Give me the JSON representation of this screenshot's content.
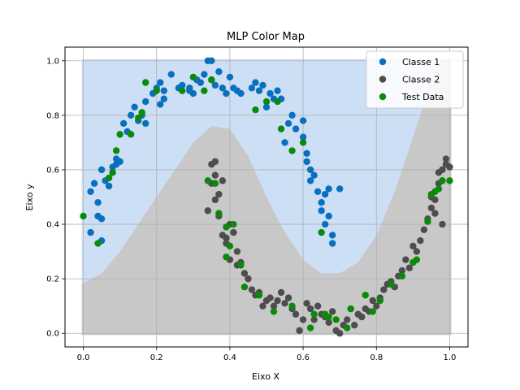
{
  "chart_data": {
    "type": "scatter",
    "title": "MLP Color Map",
    "xlabel": "Eixo X",
    "ylabel": "Eixo y",
    "xlim": [
      -0.05,
      1.05
    ],
    "ylim": [
      -0.05,
      1.05
    ],
    "xticks": [
      "0.0",
      "0.2",
      "0.4",
      "0.6",
      "0.8",
      "1.0"
    ],
    "yticks": [
      "0.0",
      "0.2",
      "0.4",
      "0.6",
      "0.8",
      "1.0"
    ],
    "grid": true,
    "legend_position": "top-right",
    "background": {
      "region_class1_color": "#cddff5",
      "region_class2_color": "#c8c8c8",
      "extent_x": [
        0.0,
        1.0
      ],
      "extent_y": [
        0.0,
        1.0
      ],
      "boundary": [
        [
          0.0,
          0.18
        ],
        [
          0.05,
          0.22
        ],
        [
          0.1,
          0.3
        ],
        [
          0.15,
          0.4
        ],
        [
          0.2,
          0.5
        ],
        [
          0.25,
          0.6
        ],
        [
          0.3,
          0.7
        ],
        [
          0.35,
          0.76
        ],
        [
          0.4,
          0.75
        ],
        [
          0.45,
          0.65
        ],
        [
          0.5,
          0.5
        ],
        [
          0.55,
          0.37
        ],
        [
          0.6,
          0.27
        ],
        [
          0.65,
          0.22
        ],
        [
          0.7,
          0.22
        ],
        [
          0.75,
          0.26
        ],
        [
          0.8,
          0.36
        ],
        [
          0.85,
          0.52
        ],
        [
          0.9,
          0.72
        ],
        [
          0.95,
          0.93
        ],
        [
          0.975,
          1.0
        ],
        [
          1.0,
          1.0
        ]
      ]
    },
    "series": [
      {
        "name": "Classe 1",
        "color": "#0a6fbf",
        "points": [
          [
            0.02,
            0.37
          ],
          [
            0.02,
            0.52
          ],
          [
            0.03,
            0.55
          ],
          [
            0.04,
            0.48
          ],
          [
            0.04,
            0.43
          ],
          [
            0.05,
            0.34
          ],
          [
            0.05,
            0.42
          ],
          [
            0.05,
            0.6
          ],
          [
            0.06,
            0.56
          ],
          [
            0.07,
            0.54
          ],
          [
            0.08,
            0.61
          ],
          [
            0.09,
            0.64
          ],
          [
            0.09,
            0.62
          ],
          [
            0.1,
            0.63
          ],
          [
            0.11,
            0.77
          ],
          [
            0.12,
            0.74
          ],
          [
            0.13,
            0.8
          ],
          [
            0.14,
            0.83
          ],
          [
            0.15,
            0.78
          ],
          [
            0.16,
            0.8
          ],
          [
            0.17,
            0.85
          ],
          [
            0.17,
            0.77
          ],
          [
            0.19,
            0.88
          ],
          [
            0.2,
            0.9
          ],
          [
            0.21,
            0.84
          ],
          [
            0.21,
            0.92
          ],
          [
            0.22,
            0.86
          ],
          [
            0.22,
            0.89
          ],
          [
            0.24,
            0.95
          ],
          [
            0.26,
            0.9
          ],
          [
            0.27,
            0.91
          ],
          [
            0.29,
            0.89
          ],
          [
            0.29,
            0.9
          ],
          [
            0.3,
            0.88
          ],
          [
            0.31,
            0.93
          ],
          [
            0.32,
            0.92
          ],
          [
            0.33,
            0.95
          ],
          [
            0.34,
            1.0
          ],
          [
            0.35,
            1.0
          ],
          [
            0.35,
            0.93
          ],
          [
            0.36,
            0.91
          ],
          [
            0.37,
            0.96
          ],
          [
            0.38,
            0.9
          ],
          [
            0.39,
            0.88
          ],
          [
            0.4,
            0.94
          ],
          [
            0.41,
            0.9
          ],
          [
            0.42,
            0.89
          ],
          [
            0.43,
            0.88
          ],
          [
            0.46,
            0.9
          ],
          [
            0.47,
            0.92
          ],
          [
            0.48,
            0.89
          ],
          [
            0.49,
            0.91
          ],
          [
            0.5,
            0.83
          ],
          [
            0.51,
            0.88
          ],
          [
            0.52,
            0.86
          ],
          [
            0.53,
            0.89
          ],
          [
            0.54,
            0.86
          ],
          [
            0.55,
            0.7
          ],
          [
            0.56,
            0.77
          ],
          [
            0.57,
            0.8
          ],
          [
            0.58,
            0.75
          ],
          [
            0.6,
            0.78
          ],
          [
            0.61,
            0.66
          ],
          [
            0.62,
            0.6
          ],
          [
            0.62,
            0.56
          ],
          [
            0.63,
            0.58
          ],
          [
            0.64,
            0.52
          ],
          [
            0.65,
            0.48
          ],
          [
            0.66,
            0.4
          ],
          [
            0.66,
            0.51
          ],
          [
            0.67,
            0.43
          ],
          [
            0.68,
            0.36
          ],
          [
            0.68,
            0.33
          ],
          [
            0.7,
            0.53
          ],
          [
            0.6,
            0.72
          ],
          [
            0.65,
            0.45
          ],
          [
            0.67,
            0.53
          ],
          [
            0.61,
            0.63
          ]
        ]
      },
      {
        "name": "Classe 2",
        "color": "#4d4d4d",
        "points": [
          [
            0.34,
            0.45
          ],
          [
            0.35,
            0.62
          ],
          [
            0.36,
            0.63
          ],
          [
            0.36,
            0.58
          ],
          [
            0.36,
            0.49
          ],
          [
            0.37,
            0.51
          ],
          [
            0.37,
            0.43
          ],
          [
            0.38,
            0.56
          ],
          [
            0.38,
            0.36
          ],
          [
            0.39,
            0.35
          ],
          [
            0.39,
            0.33
          ],
          [
            0.4,
            0.4
          ],
          [
            0.41,
            0.37
          ],
          [
            0.42,
            0.3
          ],
          [
            0.42,
            0.25
          ],
          [
            0.43,
            0.26
          ],
          [
            0.44,
            0.22
          ],
          [
            0.45,
            0.2
          ],
          [
            0.46,
            0.16
          ],
          [
            0.47,
            0.14
          ],
          [
            0.48,
            0.15
          ],
          [
            0.49,
            0.1
          ],
          [
            0.5,
            0.12
          ],
          [
            0.51,
            0.13
          ],
          [
            0.52,
            0.1
          ],
          [
            0.53,
            0.12
          ],
          [
            0.54,
            0.15
          ],
          [
            0.55,
            0.11
          ],
          [
            0.56,
            0.13
          ],
          [
            0.57,
            0.09
          ],
          [
            0.58,
            0.07
          ],
          [
            0.59,
            0.01
          ],
          [
            0.6,
            0.05
          ],
          [
            0.61,
            0.11
          ],
          [
            0.62,
            0.09
          ],
          [
            0.63,
            0.05
          ],
          [
            0.64,
            0.1
          ],
          [
            0.65,
            0.07
          ],
          [
            0.66,
            0.06
          ],
          [
            0.67,
            0.04
          ],
          [
            0.68,
            0.08
          ],
          [
            0.69,
            0.01
          ],
          [
            0.7,
            0.0
          ],
          [
            0.71,
            0.03
          ],
          [
            0.72,
            0.05
          ],
          [
            0.73,
            0.09
          ],
          [
            0.74,
            0.03
          ],
          [
            0.75,
            0.07
          ],
          [
            0.76,
            0.06
          ],
          [
            0.77,
            0.09
          ],
          [
            0.78,
            0.08
          ],
          [
            0.79,
            0.12
          ],
          [
            0.8,
            0.1
          ],
          [
            0.81,
            0.13
          ],
          [
            0.82,
            0.16
          ],
          [
            0.83,
            0.18
          ],
          [
            0.84,
            0.19
          ],
          [
            0.85,
            0.17
          ],
          [
            0.86,
            0.21
          ],
          [
            0.87,
            0.23
          ],
          [
            0.88,
            0.27
          ],
          [
            0.89,
            0.24
          ],
          [
            0.9,
            0.32
          ],
          [
            0.91,
            0.3
          ],
          [
            0.92,
            0.34
          ],
          [
            0.93,
            0.38
          ],
          [
            0.94,
            0.42
          ],
          [
            0.95,
            0.46
          ],
          [
            0.96,
            0.49
          ],
          [
            0.97,
            0.55
          ],
          [
            0.97,
            0.59
          ],
          [
            0.98,
            0.6
          ],
          [
            0.99,
            0.62
          ],
          [
            0.99,
            0.64
          ],
          [
            1.0,
            0.61
          ],
          [
            0.95,
            0.5
          ],
          [
            0.96,
            0.44
          ],
          [
            0.98,
            0.4
          ],
          [
            0.35,
            0.55
          ],
          [
            0.4,
            0.27
          ]
        ]
      },
      {
        "name": "Test Data",
        "color": "#0a8a0a",
        "points": [
          [
            0.0,
            0.43
          ],
          [
            0.04,
            0.33
          ],
          [
            0.07,
            0.57
          ],
          [
            0.08,
            0.59
          ],
          [
            0.09,
            0.67
          ],
          [
            0.1,
            0.73
          ],
          [
            0.13,
            0.73
          ],
          [
            0.15,
            0.79
          ],
          [
            0.16,
            0.81
          ],
          [
            0.17,
            0.92
          ],
          [
            0.2,
            0.89
          ],
          [
            0.27,
            0.89
          ],
          [
            0.3,
            0.94
          ],
          [
            0.33,
            0.89
          ],
          [
            0.35,
            0.93
          ],
          [
            0.47,
            0.82
          ],
          [
            0.5,
            0.85
          ],
          [
            0.53,
            0.85
          ],
          [
            0.54,
            0.75
          ],
          [
            0.57,
            0.67
          ],
          [
            0.6,
            0.7
          ],
          [
            0.34,
            0.56
          ],
          [
            0.36,
            0.55
          ],
          [
            0.37,
            0.44
          ],
          [
            0.39,
            0.28
          ],
          [
            0.4,
            0.32
          ],
          [
            0.41,
            0.4
          ],
          [
            0.43,
            0.25
          ],
          [
            0.44,
            0.17
          ],
          [
            0.48,
            0.14
          ],
          [
            0.52,
            0.08
          ],
          [
            0.57,
            0.1
          ],
          [
            0.62,
            0.02
          ],
          [
            0.63,
            0.07
          ],
          [
            0.66,
            0.07
          ],
          [
            0.67,
            0.06
          ],
          [
            0.69,
            0.05
          ],
          [
            0.72,
            0.02
          ],
          [
            0.73,
            0.09
          ],
          [
            0.77,
            0.14
          ],
          [
            0.79,
            0.08
          ],
          [
            0.81,
            0.12
          ],
          [
            0.84,
            0.18
          ],
          [
            0.87,
            0.21
          ],
          [
            0.9,
            0.26
          ],
          [
            0.91,
            0.27
          ],
          [
            0.94,
            0.41
          ],
          [
            0.95,
            0.51
          ],
          [
            0.96,
            0.52
          ],
          [
            0.97,
            0.53
          ],
          [
            0.98,
            0.56
          ],
          [
            1.0,
            0.56
          ],
          [
            0.65,
            0.37
          ],
          [
            0.39,
            0.39
          ]
        ]
      }
    ]
  }
}
